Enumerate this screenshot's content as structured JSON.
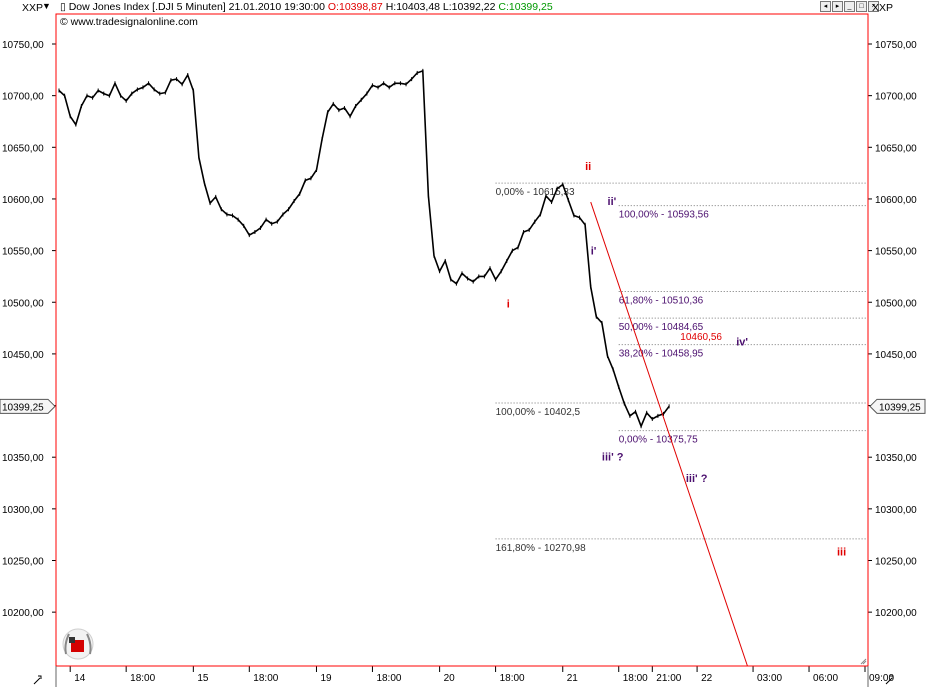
{
  "header": {
    "symbol_left": "XXP",
    "symbol_right": "XXP",
    "title": "Dow Jones Index [.DJI  5 Minuten]",
    "datetime": "21.01.2010 19:30:00",
    "open_label": "O:10398,87",
    "high_label": "H:10403,48",
    "low_label": "L:10392,22",
    "close_label": "C:10399,25",
    "website": "www.tradesignalonline.com"
  },
  "colors": {
    "price_line": "#000000",
    "trend_line": "#e00000",
    "fib_primary": "#333333",
    "fib_secondary": "#4b0f6e",
    "wave_red": "#e00000",
    "wave_purple": "#4b0f6e",
    "border": "#ff0000",
    "grid": "#c8c8c8"
  },
  "chart_data": {
    "type": "line",
    "title": "Dow Jones Index [.DJI  5 Minuten]",
    "y_axis": {
      "ticks": [
        "10750,00",
        "10700,00",
        "10650,00",
        "10600,00",
        "10550,00",
        "10500,00",
        "10450,00",
        "10400,00",
        "10350,00",
        "10300,00",
        "10250,00",
        "10200,00"
      ],
      "tick_values": [
        10750,
        10700,
        10650,
        10600,
        10550,
        10500,
        10450,
        10400,
        10350,
        10300,
        10250,
        10200
      ],
      "ylim": [
        10136,
        10788
      ]
    },
    "x_axis": {
      "ticks": [
        "14",
        "18:00",
        "15",
        "18:00",
        "19",
        "18:00",
        "20",
        "18:00",
        "21",
        "18:00",
        "21:00",
        "22",
        "03:00",
        "06:00",
        "09:00"
      ],
      "tick_index": [
        2,
        12,
        24,
        34,
        46,
        56,
        68,
        78,
        90,
        100,
        106,
        114,
        124,
        134,
        144
      ]
    },
    "current_price": "10399,25",
    "series": [
      {
        "values": [
          10705,
          10700,
          10680,
          10672,
          10690,
          10700,
          10698,
          10705,
          10702,
          10700,
          10712,
          10700,
          10695,
          10702,
          10706,
          10708,
          10712,
          10706,
          10702,
          10703,
          10715,
          10716,
          10711,
          10720,
          10705,
          10640,
          10615,
          10596,
          10602,
          10590,
          10585,
          10584,
          10580,
          10574,
          10565,
          10568,
          10572,
          10580,
          10576,
          10578,
          10585,
          10590,
          10598,
          10605,
          10618,
          10620,
          10628,
          10658,
          10684,
          10692,
          10686,
          10688,
          10680,
          10690,
          10696,
          10702,
          10710,
          10708,
          10712,
          10708,
          10712,
          10712,
          10711,
          10716,
          10722,
          10724,
          10603,
          10545,
          10530,
          10540,
          10522,
          10518,
          10528,
          10523,
          10520,
          10525,
          10525,
          10533,
          10522,
          10530,
          10540,
          10550,
          10553,
          10568,
          10570,
          10578,
          10585,
          10603,
          10597,
          10610,
          10614,
          10599,
          10584,
          10582,
          10575,
          10515,
          10486,
          10480,
          10448,
          10435,
          10418,
          10402,
          10390,
          10394,
          10380,
          10393,
          10387,
          10390,
          10392,
          10399.25
        ]
      }
    ],
    "annotations": {
      "fib_primary": [
        "0,00% - 10615,33",
        "100,00% - 10402,5",
        "161,80% - 10270,98"
      ],
      "fib_secondary": [
        "100,00% - 10593,56",
        "61,80% - 10510,36",
        "50,00% - 10484,65",
        "38,20% - 10458,95",
        "0,00% - 10375,75"
      ],
      "price_label": "10460,56",
      "waves": [
        "i",
        "ii",
        "iii",
        "ii'",
        "i'",
        "iii' ?",
        "iii' ?",
        "iv'"
      ]
    }
  }
}
